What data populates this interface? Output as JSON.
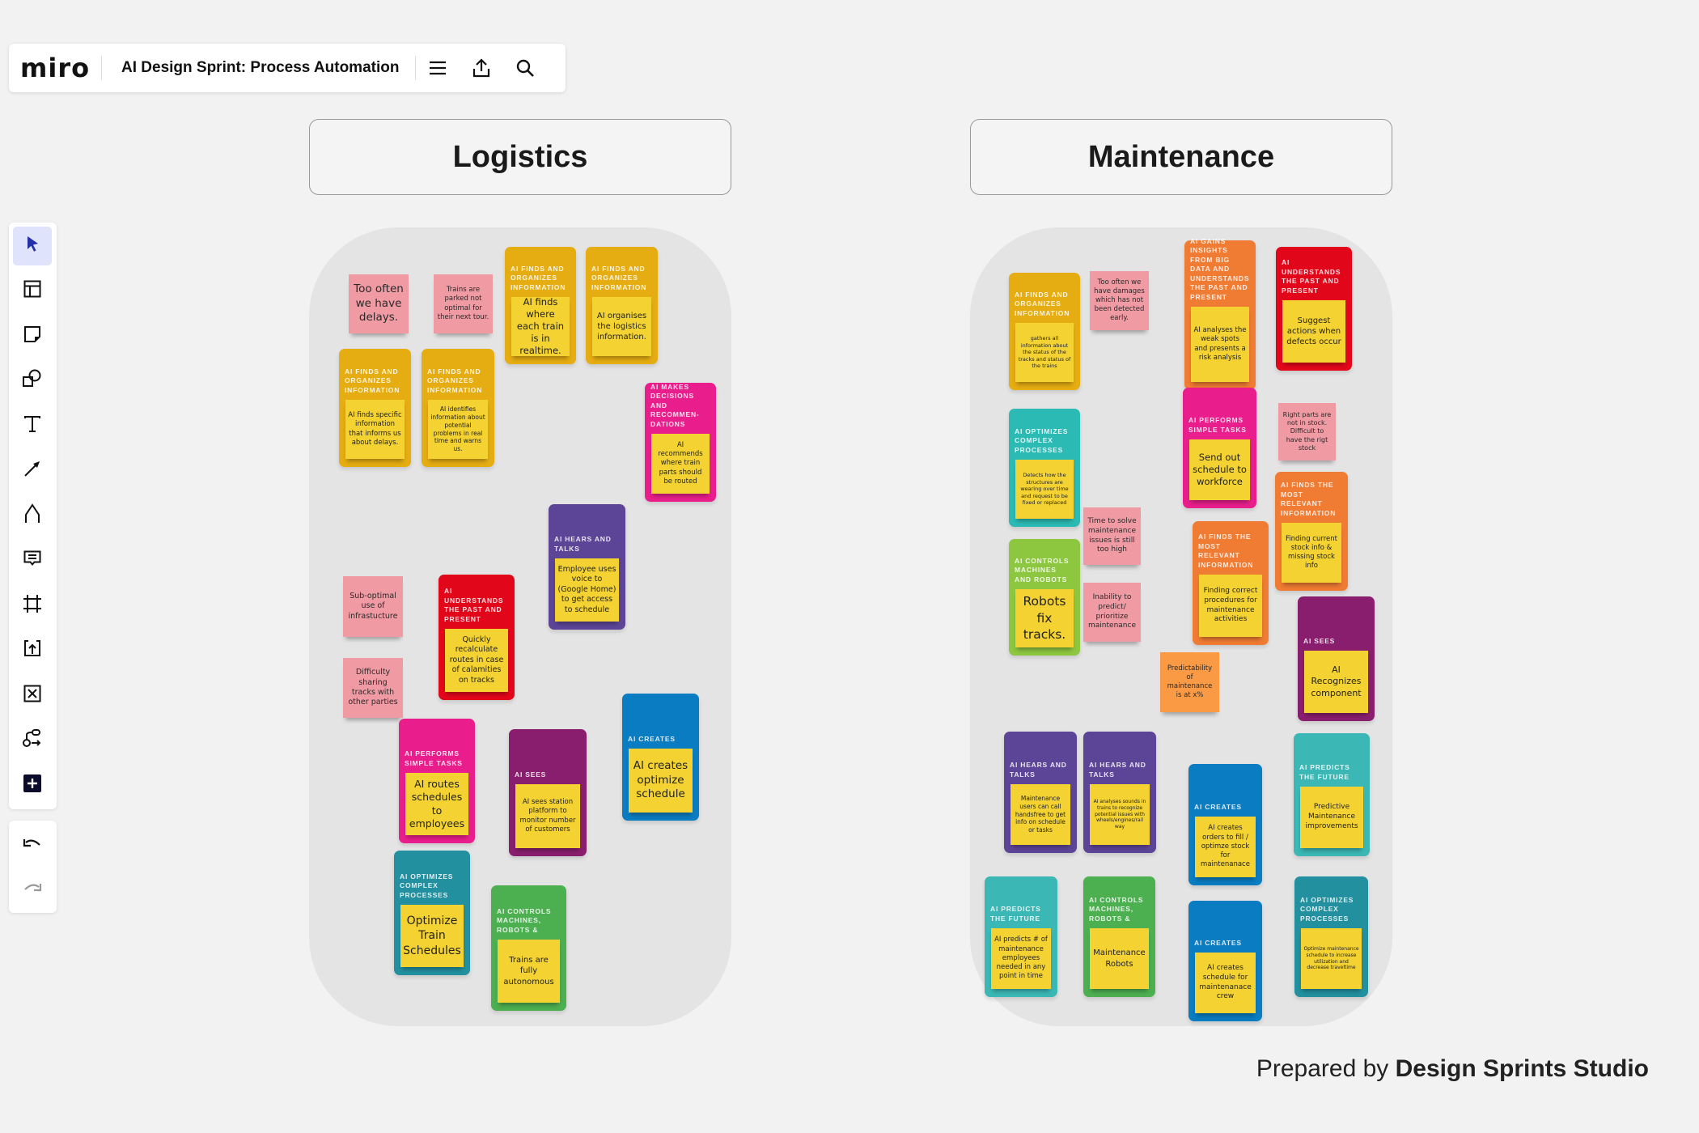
{
  "header": {
    "logo": "miro",
    "board_title": "AI Design Sprint: Process Automation",
    "icons": [
      "menu-icon",
      "upload-icon",
      "search-icon"
    ]
  },
  "toolbar": {
    "tools": [
      "select",
      "templates",
      "sticky-note",
      "shapes",
      "text",
      "connection-line",
      "pen",
      "comment",
      "frame",
      "upload",
      "crop",
      "mind-map",
      "add"
    ],
    "active": "select",
    "history": [
      "undo",
      "redo"
    ]
  },
  "colors": {
    "sticky_yellow": "#F3D232",
    "pink": "#F09AA4",
    "accent": "#4262FF"
  },
  "sections": [
    {
      "title": "Logistics",
      "stickies": [
        {
          "text": "Too often we have delays.",
          "color": "#F09AA4"
        },
        {
          "text": "Trains are parked not optimal for their next tour.",
          "color": "#F09AA4"
        },
        {
          "text": "Sub-optimal use of infrastucture",
          "color": "#F09AA4"
        },
        {
          "text": "Difficulty sharing tracks with other parties",
          "color": "#F09AA4"
        }
      ],
      "cards": [
        {
          "category": "AI finds and organizes information",
          "text": "AI finds where each train is in realtime.",
          "color": "#E5AD12"
        },
        {
          "category": "AI finds and organizes information",
          "text": "AI organises the logistics information.",
          "color": "#E5AD12"
        },
        {
          "category": "AI finds and organizes information",
          "text": "AI finds specific information that informs us about delays.",
          "color": "#E5AD12"
        },
        {
          "category": "AI finds and organizes information",
          "text": "AI identifies information about potential problems in real time and warns us.",
          "color": "#E5AD12"
        },
        {
          "category": "AI makes decisions and recommen-dations",
          "text": "AI recommends where train parts should be routed",
          "color": "#E91E8C"
        },
        {
          "category": "AI hears and talks",
          "text": "Employee uses voice to (Google Home) to get access to schedule",
          "color": "#5C4597"
        },
        {
          "category": "AI understands the past and present",
          "text": "Quickly recalculate routes in case of calamities on tracks",
          "color": "#E2061B"
        },
        {
          "category": "AI creates",
          "text": "AI creates optimize schedule",
          "color": "#0A7CC1"
        },
        {
          "category": "AI performs simple tasks",
          "text": "AI routes schedules to employees",
          "color": "#E91E8C"
        },
        {
          "category": "AI sees",
          "text": "AI sees station platform to monitor number of customers",
          "color": "#8A1E6E"
        },
        {
          "category": "AI optimizes complex processes",
          "text": "Optimize Train Schedules",
          "color": "#22909F"
        },
        {
          "category": "AI controls machines, robots &",
          "text": "Trains are fully autonomous",
          "color": "#4CAF50"
        }
      ]
    },
    {
      "title": "Maintenance",
      "stickies": [
        {
          "text": "Too often we have damages which has not been detected early.",
          "color": "#F09AA4"
        },
        {
          "text": "Right parts are not in stock. Difficult to have the rigt stock",
          "color": "#F09AA4"
        },
        {
          "text": "Time to solve maintenance issues is still too high",
          "color": "#F09AA4"
        },
        {
          "text": "Inability to predict/ prioritize maintenance",
          "color": "#F09AA4"
        },
        {
          "text": "Predictability of maintenance is at x%",
          "color": "#FA9A45"
        }
      ],
      "cards": [
        {
          "category": "AI finds and organizes information",
          "text": "gathers all information about the status of the tracks and status of the trains",
          "color": "#E5AD12"
        },
        {
          "category": "AI gains insights from big data and understands the past and present",
          "text": "AI analyses the weak spots and presents a risk analysis",
          "color": "#F07B32"
        },
        {
          "category": "AI understands the past and present",
          "text": "Suggest actions when defects occur",
          "color": "#E2061B"
        },
        {
          "category": "AI optimizes complex processes",
          "text": "Detects how the structures are wearing over time and request to be fixed or replaced",
          "color": "#2BBBB4"
        },
        {
          "category": "AI performs simple tasks",
          "text": "Send out schedule to workforce",
          "color": "#E91E8C"
        },
        {
          "category": "AI finds the most relevant information",
          "text": "Finding current stock info & missing stock info",
          "color": "#F07B32"
        },
        {
          "category": "AI controls machines and robots",
          "text": "Robots fix tracks.",
          "color": "#8DC63F"
        },
        {
          "category": "AI finds the most relevant information",
          "text": "Finding correct procedures for maintenance activities",
          "color": "#F07B32"
        },
        {
          "category": "AI sees",
          "text": "AI Recognizes component",
          "color": "#8A1E6E"
        },
        {
          "category": "AI hears and talks",
          "text": "Maintenance users can call handsfree to get info on schedule or tasks",
          "color": "#5C4597"
        },
        {
          "category": "AI hears and talks",
          "text": "AI analyses sounds in trains to recognize potential issues with wheels/engines/rail way",
          "color": "#5C4597"
        },
        {
          "category": "AI creates",
          "text": "AI creates orders to fill / optimze stock for maintenanace",
          "color": "#0A7CC1"
        },
        {
          "category": "AI predicts the future",
          "text": "Predictive Maintenance improvements",
          "color": "#3BB8B5"
        },
        {
          "category": "AI predicts the future",
          "text": "AI predicts # of maintenance employees needed in any point in time",
          "color": "#3BB8B5"
        },
        {
          "category": "AI controls machines, robots &",
          "text": "Maintenance Robots",
          "color": "#4CAF50"
        },
        {
          "category": "AI creates",
          "text": "AI creates schedule for maintenanace crew",
          "color": "#0A7CC1"
        },
        {
          "category": "AI optimizes complex processes",
          "text": "Optimize maintenance schedule to increase utilization and decrease traveltime",
          "color": "#22909F"
        }
      ]
    }
  ],
  "footer": {
    "prefix": "Prepared by",
    "studio": "Design Sprints Studio"
  }
}
